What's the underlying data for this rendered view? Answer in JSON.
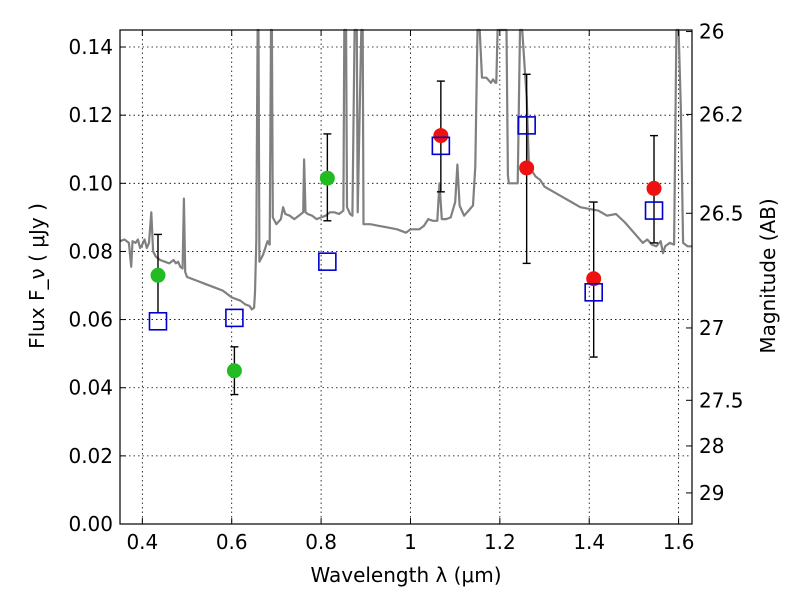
{
  "chart_data": {
    "type": "scatter",
    "title": "",
    "xlabel": "Wavelength  λ (μm)",
    "ylabel": "Flux  F_ν  ( μJy )",
    "ylabel_right": "Magnitude (AB)",
    "xlim": [
      0.35,
      1.63
    ],
    "ylim": [
      0.0,
      0.145
    ],
    "grid": true,
    "x_ticks": [
      0.4,
      0.6,
      0.8,
      1.0,
      1.2,
      1.4,
      1.6
    ],
    "x_tick_labels": [
      "0.4",
      "0.6",
      "0.8",
      "1",
      "1.2",
      "1.4",
      "1.6"
    ],
    "y_ticks": [
      0.0,
      0.02,
      0.04,
      0.06,
      0.08,
      0.1,
      0.12,
      0.14
    ],
    "y_tick_labels": [
      "0.00",
      "0.02",
      "0.04",
      "0.06",
      "0.08",
      "0.10",
      "0.12",
      "0.14"
    ],
    "right_ticks": [
      {
        "label": "26",
        "mag": 26
      },
      {
        "label": "26.2",
        "mag": 26.2
      },
      {
        "label": "26.5",
        "mag": 26.5
      },
      {
        "label": "27",
        "mag": 27
      },
      {
        "label": "27.5",
        "mag": 27.5
      },
      {
        "label": "28",
        "mag": 28
      },
      {
        "label": "29",
        "mag": 29
      }
    ],
    "series": [
      {
        "marker": "circle",
        "color": "#22bb22",
        "points": [
          {
            "x": 0.435,
            "y": 0.073,
            "err_low": 0.062,
            "err_high": 0.085
          },
          {
            "x": 0.606,
            "y": 0.045,
            "err_low": 0.038,
            "err_high": 0.052
          },
          {
            "x": 0.814,
            "y": 0.1015,
            "err_low": 0.089,
            "err_high": 0.1145
          }
        ]
      },
      {
        "marker": "circle",
        "color": "#ee1111",
        "points": [
          {
            "x": 1.068,
            "y": 0.114,
            "err_low": 0.0975,
            "err_high": 0.13
          },
          {
            "x": 1.26,
            "y": 0.1045,
            "err_low": 0.0765,
            "err_high": 0.132
          },
          {
            "x": 1.41,
            "y": 0.072,
            "err_low": 0.049,
            "err_high": 0.0945
          },
          {
            "x": 1.545,
            "y": 0.0985,
            "err_low": 0.0825,
            "err_high": 0.114
          }
        ]
      },
      {
        "marker": "square",
        "color": "#0000cc",
        "points": [
          {
            "x": 0.435,
            "y": 0.0595
          },
          {
            "x": 0.606,
            "y": 0.0605
          },
          {
            "x": 0.814,
            "y": 0.077
          },
          {
            "x": 1.068,
            "y": 0.111
          },
          {
            "x": 1.26,
            "y": 0.117
          },
          {
            "x": 1.41,
            "y": 0.068
          },
          {
            "x": 1.545,
            "y": 0.092
          }
        ]
      }
    ],
    "spectrum": {
      "color": "#808080",
      "points": [
        [
          0.35,
          0.083
        ],
        [
          0.36,
          0.0835
        ],
        [
          0.37,
          0.0825
        ],
        [
          0.375,
          0.0755
        ],
        [
          0.378,
          0.083
        ],
        [
          0.385,
          0.0825
        ],
        [
          0.39,
          0.0835
        ],
        [
          0.395,
          0.081
        ],
        [
          0.4,
          0.082
        ],
        [
          0.405,
          0.0835
        ],
        [
          0.41,
          0.081
        ],
        [
          0.415,
          0.0825
        ],
        [
          0.42,
          0.0915
        ],
        [
          0.424,
          0.08
        ],
        [
          0.43,
          0.0785
        ],
        [
          0.44,
          0.0775
        ],
        [
          0.45,
          0.077
        ],
        [
          0.46,
          0.0765
        ],
        [
          0.47,
          0.0775
        ],
        [
          0.475,
          0.0765
        ],
        [
          0.48,
          0.077
        ],
        [
          0.485,
          0.0755
        ],
        [
          0.49,
          0.075
        ],
        [
          0.493,
          0.0955
        ],
        [
          0.496,
          0.074
        ],
        [
          0.5,
          0.0725
        ],
        [
          0.52,
          0.0715
        ],
        [
          0.54,
          0.0705
        ],
        [
          0.56,
          0.0695
        ],
        [
          0.58,
          0.0685
        ],
        [
          0.6,
          0.0665
        ],
        [
          0.62,
          0.0655
        ],
        [
          0.63,
          0.0645
        ],
        [
          0.64,
          0.064
        ],
        [
          0.645,
          0.063
        ],
        [
          0.65,
          0.0635
        ],
        [
          0.652,
          0.068
        ],
        [
          0.655,
          0.083
        ],
        [
          0.658,
          0.145
        ],
        [
          0.66,
          0.145
        ],
        [
          0.662,
          0.077
        ],
        [
          0.67,
          0.079
        ],
        [
          0.68,
          0.083
        ],
        [
          0.685,
          0.082
        ],
        [
          0.688,
          0.145
        ],
        [
          0.69,
          0.145
        ],
        [
          0.692,
          0.09
        ],
        [
          0.7,
          0.088
        ],
        [
          0.71,
          0.0895
        ],
        [
          0.715,
          0.093
        ],
        [
          0.72,
          0.091
        ],
        [
          0.73,
          0.0905
        ],
        [
          0.74,
          0.0895
        ],
        [
          0.75,
          0.0905
        ],
        [
          0.76,
          0.0915
        ],
        [
          0.762,
          0.107
        ],
        [
          0.765,
          0.0915
        ],
        [
          0.77,
          0.091
        ],
        [
          0.78,
          0.0905
        ],
        [
          0.79,
          0.0895
        ],
        [
          0.8,
          0.09
        ],
        [
          0.81,
          0.0905
        ],
        [
          0.82,
          0.0915
        ],
        [
          0.83,
          0.0915
        ],
        [
          0.84,
          0.091
        ],
        [
          0.85,
          0.092
        ],
        [
          0.852,
          0.145
        ],
        [
          0.856,
          0.145
        ],
        [
          0.858,
          0.093
        ],
        [
          0.865,
          0.091
        ],
        [
          0.87,
          0.0905
        ],
        [
          0.875,
          0.145
        ],
        [
          0.88,
          0.145
        ],
        [
          0.882,
          0.0915
        ],
        [
          0.89,
          0.145
        ],
        [
          0.893,
          0.145
        ],
        [
          0.895,
          0.088
        ],
        [
          0.91,
          0.088
        ],
        [
          0.93,
          0.0875
        ],
        [
          0.95,
          0.087
        ],
        [
          0.97,
          0.0865
        ],
        [
          0.99,
          0.0855
        ],
        [
          1.0,
          0.0865
        ],
        [
          1.02,
          0.0865
        ],
        [
          1.03,
          0.0875
        ],
        [
          1.04,
          0.0895
        ],
        [
          1.05,
          0.089
        ],
        [
          1.06,
          0.089
        ],
        [
          1.065,
          0.1
        ],
        [
          1.07,
          0.0895
        ],
        [
          1.08,
          0.0895
        ],
        [
          1.09,
          0.09
        ],
        [
          1.1,
          0.0945
        ],
        [
          1.105,
          0.1055
        ],
        [
          1.11,
          0.0935
        ],
        [
          1.12,
          0.0905
        ],
        [
          1.13,
          0.092
        ],
        [
          1.14,
          0.0935
        ],
        [
          1.145,
          0.105
        ],
        [
          1.15,
          0.145
        ],
        [
          1.155,
          0.145
        ],
        [
          1.16,
          0.131
        ],
        [
          1.17,
          0.131
        ],
        [
          1.18,
          0.1295
        ],
        [
          1.185,
          0.1305
        ],
        [
          1.19,
          0.1295
        ],
        [
          1.192,
          0.1295
        ],
        [
          1.195,
          0.145
        ],
        [
          1.2,
          0.145
        ],
        [
          1.21,
          0.145
        ],
        [
          1.215,
          0.145
        ],
        [
          1.218,
          0.1025
        ],
        [
          1.22,
          0.1
        ],
        [
          1.23,
          0.1
        ],
        [
          1.24,
          0.1
        ],
        [
          1.245,
          0.145
        ],
        [
          1.25,
          0.145
        ],
        [
          1.26,
          0.125
        ],
        [
          1.265,
          0.1055
        ],
        [
          1.27,
          0.104
        ],
        [
          1.28,
          0.102
        ],
        [
          1.29,
          0.101
        ],
        [
          1.3,
          0.099
        ],
        [
          1.32,
          0.0975
        ],
        [
          1.34,
          0.096
        ],
        [
          1.36,
          0.0945
        ],
        [
          1.38,
          0.093
        ],
        [
          1.4,
          0.0925
        ],
        [
          1.42,
          0.092
        ],
        [
          1.44,
          0.0905
        ],
        [
          1.46,
          0.091
        ],
        [
          1.48,
          0.0885
        ],
        [
          1.5,
          0.0855
        ],
        [
          1.51,
          0.084
        ],
        [
          1.52,
          0.0825
        ],
        [
          1.53,
          0.0835
        ],
        [
          1.54,
          0.082
        ],
        [
          1.55,
          0.0815
        ],
        [
          1.56,
          0.083
        ],
        [
          1.565,
          0.0795
        ],
        [
          1.57,
          0.0815
        ],
        [
          1.58,
          0.0825
        ],
        [
          1.59,
          0.082
        ],
        [
          1.595,
          0.145
        ],
        [
          1.6,
          0.145
        ],
        [
          1.605,
          0.1225
        ],
        [
          1.61,
          0.0825
        ],
        [
          1.62,
          0.0815
        ],
        [
          1.63,
          0.0815
        ]
      ]
    }
  }
}
